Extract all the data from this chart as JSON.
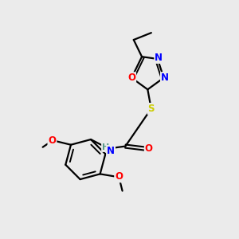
{
  "background_color": "#ebebeb",
  "bond_color": "#000000",
  "atom_colors": {
    "N": "#0000FF",
    "O": "#FF0000",
    "S": "#CCCC00",
    "H": "#5a9a8a",
    "C": "#000000"
  },
  "font_size": 8.5,
  "figsize": [
    3.0,
    3.0
  ],
  "dpi": 100
}
